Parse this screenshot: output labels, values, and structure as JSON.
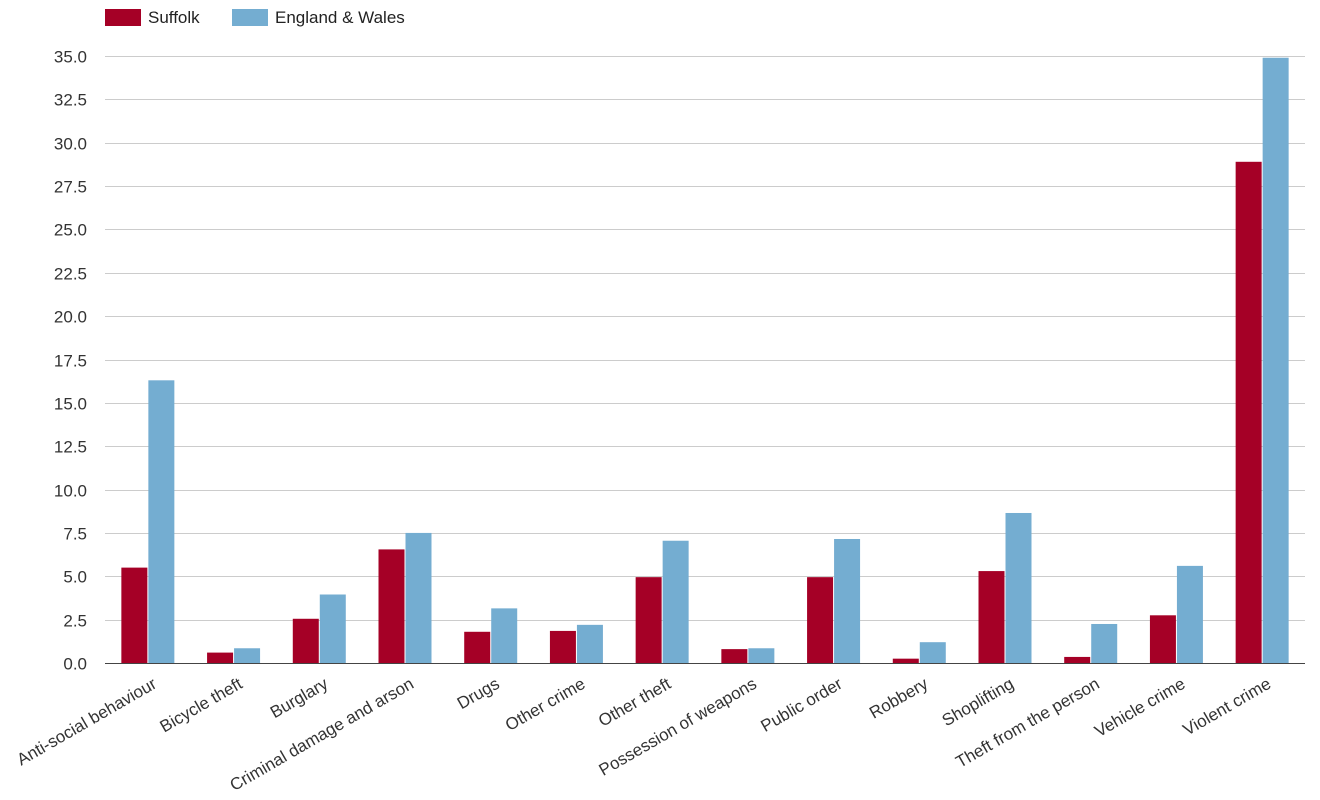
{
  "chart_data": {
    "type": "bar",
    "title": "",
    "xlabel": "",
    "ylabel": "",
    "ylim": [
      0,
      35
    ],
    "yticks": [
      "0.0",
      "2.5",
      "5.0",
      "7.5",
      "10.0",
      "12.5",
      "15.0",
      "17.5",
      "20.0",
      "22.5",
      "25.0",
      "27.5",
      "30.0",
      "32.5",
      "35.0"
    ],
    "grid": true,
    "legend_position": "top-left",
    "categories": [
      "Anti-social behaviour",
      "Bicycle theft",
      "Burglary",
      "Criminal damage and arson",
      "Drugs",
      "Other crime",
      "Other theft",
      "Possession of weapons",
      "Public order",
      "Robbery",
      "Shoplifting",
      "Theft from the person",
      "Vehicle crime",
      "Violent crime"
    ],
    "series": [
      {
        "name": "Suffolk",
        "color": "#a50026",
        "values": [
          5.5,
          0.6,
          2.55,
          6.55,
          1.8,
          1.85,
          4.95,
          0.8,
          4.95,
          0.25,
          5.3,
          0.35,
          2.75,
          28.9
        ]
      },
      {
        "name": "England & Wales",
        "color": "#74add1",
        "values": [
          16.3,
          0.85,
          3.95,
          7.5,
          3.15,
          2.2,
          7.05,
          0.85,
          7.15,
          1.2,
          8.65,
          2.25,
          5.6,
          34.9
        ]
      }
    ]
  }
}
